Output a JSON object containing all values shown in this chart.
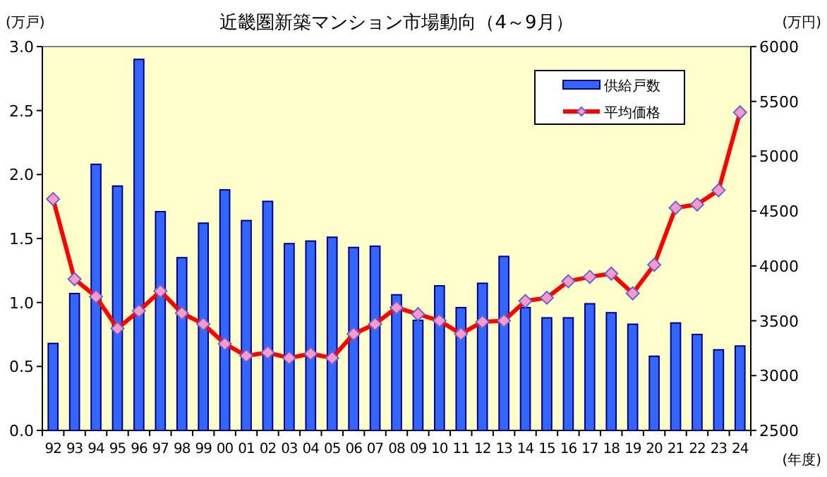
{
  "chart_data": {
    "type": "bar",
    "title": "近畿圏新築マンション市場動向（4～9月）",
    "ylabel": "(万戸)",
    "y2label": "(万円)",
    "xlabel": "(年度)",
    "categories": [
      "92",
      "93",
      "94",
      "95",
      "96",
      "97",
      "98",
      "99",
      "00",
      "01",
      "02",
      "03",
      "04",
      "05",
      "06",
      "07",
      "08",
      "09",
      "10",
      "11",
      "12",
      "13",
      "14",
      "15",
      "16",
      "17",
      "18",
      "19",
      "20",
      "21",
      "22",
      "23",
      "24"
    ],
    "series": [
      {
        "name": "供給戸数",
        "color": "#3366ff",
        "values": [
          0.68,
          1.07,
          2.08,
          1.91,
          2.9,
          1.71,
          1.35,
          1.62,
          1.88,
          1.64,
          1.79,
          1.46,
          1.48,
          1.51,
          1.43,
          1.44,
          1.06,
          0.86,
          1.13,
          0.96,
          1.15,
          1.36,
          0.96,
          0.88,
          0.88,
          0.99,
          0.92,
          0.83,
          0.58,
          0.84,
          0.75,
          0.63,
          0.66
        ]
      },
      {
        "name": "平均価格",
        "type": "line",
        "axis": "y2",
        "color": "#ff0000",
        "marker": "diamond",
        "values": [
          4610,
          3880,
          3720,
          3430,
          3590,
          3770,
          3570,
          3470,
          3290,
          3180,
          3210,
          3160,
          3200,
          3160,
          3380,
          3470,
          3620,
          3560,
          3500,
          3380,
          3490,
          3500,
          3680,
          3710,
          3860,
          3900,
          3930,
          3750,
          4010,
          4530,
          4560,
          4690,
          5400
        ]
      }
    ],
    "ylim": [
      0,
      3
    ],
    "yticks": [
      {
        "value": 0,
        "label": "0.0"
      },
      {
        "value": 0.5,
        "label": "0.5"
      },
      {
        "value": 1,
        "label": "1.0"
      },
      {
        "value": 1.5,
        "label": "1.5"
      },
      {
        "value": 2,
        "label": "2.0"
      },
      {
        "value": 2.5,
        "label": "2.5"
      },
      {
        "value": 3,
        "label": "3.0"
      }
    ],
    "y2lim": [
      2500,
      6000
    ],
    "y2ticks": [
      2500,
      3000,
      3500,
      4000,
      4500,
      5000,
      5500,
      6000
    ],
    "legend": "top right"
  }
}
